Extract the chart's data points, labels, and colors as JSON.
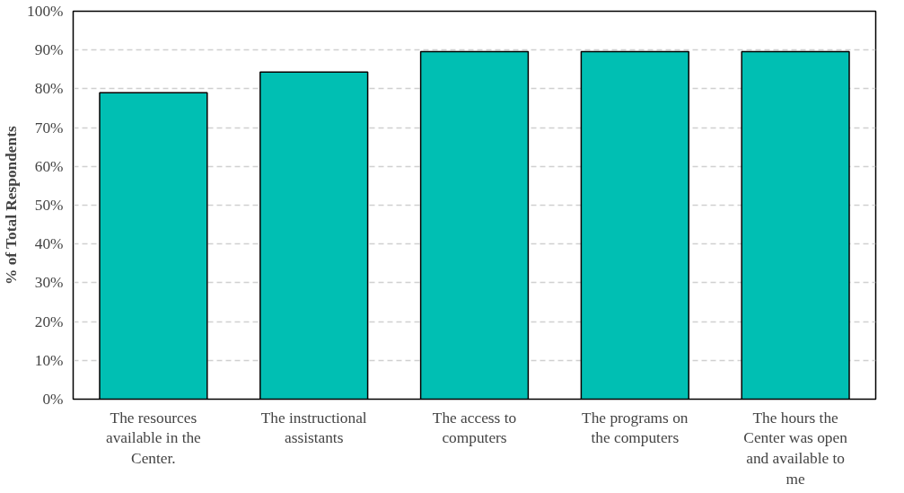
{
  "chart_data": {
    "type": "bar",
    "ylabel": "% of Total Respondents",
    "categories": [
      "The resources available in the Center.",
      "The instructional assistants",
      "The access to computers",
      "The programs on the computers",
      "The hours the Center was open and available to me"
    ],
    "values": [
      79,
      84.3,
      89.6,
      89.6,
      89.6
    ],
    "color": "#00bfb3",
    "ylim": [
      0,
      100
    ],
    "yticks": [
      {
        "value": 0,
        "label": "0%"
      },
      {
        "value": 10,
        "label": "10%"
      },
      {
        "value": 20,
        "label": "20%"
      },
      {
        "value": 30,
        "label": "30%"
      },
      {
        "value": 40,
        "label": "40%"
      },
      {
        "value": 50,
        "label": "50%"
      },
      {
        "value": 60,
        "label": "60%"
      },
      {
        "value": 70,
        "label": "70%"
      },
      {
        "value": 80,
        "label": "80%"
      },
      {
        "value": 90,
        "label": "90%"
      },
      {
        "value": 100,
        "label": "100%"
      }
    ],
    "grid": "y"
  }
}
